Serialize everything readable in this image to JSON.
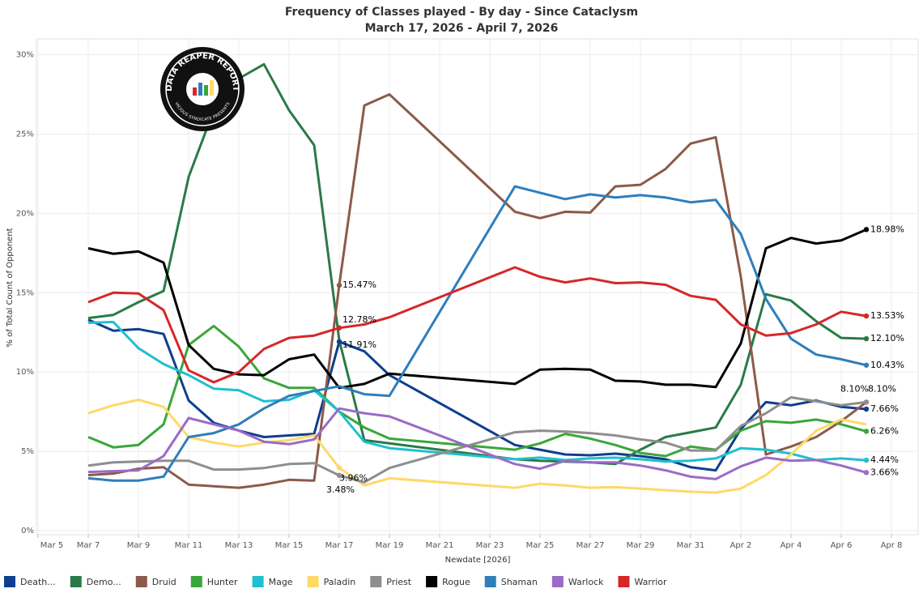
{
  "chart_data": {
    "type": "line",
    "title": "Frequency of Classes played - By day - Since Cataclysm",
    "subtitle": "March 17, 2026 - April 7, 2026",
    "x_label": "Newdate [2026]",
    "y_label": "% of Total Count of Opponent",
    "x": [
      "2026-03-07",
      "2026-03-08",
      "2026-03-09",
      "2026-03-10",
      "2026-03-11",
      "2026-03-12",
      "2026-03-13",
      "2026-03-14",
      "2026-03-15",
      "2026-03-16",
      "2026-03-17",
      "2026-03-18",
      "2026-03-19",
      "2026-03-24",
      "2026-03-25",
      "2026-03-26",
      "2026-03-27",
      "2026-03-28",
      "2026-03-29",
      "2026-03-30",
      "2026-03-31",
      "2026-04-01",
      "2026-04-02",
      "2026-04-03",
      "2026-04-04",
      "2026-04-05",
      "2026-04-06",
      "2026-04-07"
    ],
    "xlim": [
      "2026-03-05",
      "2026-04-09"
    ],
    "xticks": [
      {
        "value": "2026-03-05",
        "label": "Mar 5"
      },
      {
        "value": "2026-03-07",
        "label": "Mar 7"
      },
      {
        "value": "2026-03-09",
        "label": "Mar 9"
      },
      {
        "value": "2026-03-11",
        "label": "Mar 11"
      },
      {
        "value": "2026-03-13",
        "label": "Mar 13"
      },
      {
        "value": "2026-03-15",
        "label": "Mar 15"
      },
      {
        "value": "2026-03-17",
        "label": "Mar 17"
      },
      {
        "value": "2026-03-19",
        "label": "Mar 19"
      },
      {
        "value": "2026-03-21",
        "label": "Mar 21"
      },
      {
        "value": "2026-03-23",
        "label": "Mar 23"
      },
      {
        "value": "2026-03-25",
        "label": "Mar 25"
      },
      {
        "value": "2026-03-27",
        "label": "Mar 27"
      },
      {
        "value": "2026-03-29",
        "label": "Mar 29"
      },
      {
        "value": "2026-03-31",
        "label": "Mar 31"
      },
      {
        "value": "2026-04-02",
        "label": "Apr 2"
      },
      {
        "value": "2026-04-04",
        "label": "Apr 4"
      },
      {
        "value": "2026-04-06",
        "label": "Apr 6"
      },
      {
        "value": "2026-04-08",
        "label": "Apr 8"
      }
    ],
    "ylim": [
      0,
      31
    ],
    "yticks": [
      {
        "value": 0,
        "label": "0%"
      },
      {
        "value": 5,
        "label": "5%"
      },
      {
        "value": 10,
        "label": "10%"
      },
      {
        "value": 15,
        "label": "15%"
      },
      {
        "value": 20,
        "label": "20%"
      },
      {
        "value": 25,
        "label": "25%"
      },
      {
        "value": 30,
        "label": "30%"
      }
    ],
    "grid": true,
    "legend": "bottom",
    "series": [
      {
        "name": "Death...",
        "color": "#0d3f8f",
        "values": [
          13.3,
          12.6,
          12.7,
          12.4,
          8.2,
          6.8,
          6.3,
          5.9,
          6.0,
          6.1,
          11.91,
          11.3,
          9.8,
          5.4,
          5.1,
          4.8,
          4.75,
          4.85,
          4.7,
          4.5,
          4.0,
          3.8,
          6.4,
          8.1,
          7.9,
          8.2,
          7.8,
          7.66
        ],
        "value_labels": [
          null,
          null,
          null,
          null,
          null,
          null,
          null,
          null,
          null,
          null,
          "11.91%",
          null,
          null,
          null,
          null,
          null,
          null,
          null,
          null,
          null,
          null,
          null,
          null,
          null,
          null,
          null,
          null,
          "7.66%"
        ]
      },
      {
        "name": "Demo...",
        "color": "#2a7a47",
        "values": [
          13.4,
          13.6,
          14.4,
          15.1,
          22.3,
          26.5,
          28.5,
          29.4,
          26.5,
          24.3,
          12.0,
          5.7,
          5.5,
          4.5,
          4.4,
          4.35,
          4.3,
          4.2,
          5.1,
          5.9,
          6.2,
          6.5,
          9.2,
          14.9,
          14.5,
          13.2,
          12.15,
          12.1
        ],
        "value_labels": [
          null,
          null,
          null,
          null,
          null,
          null,
          null,
          null,
          null,
          null,
          null,
          null,
          null,
          null,
          null,
          null,
          null,
          null,
          null,
          null,
          null,
          null,
          null,
          null,
          null,
          null,
          null,
          "12.10%"
        ]
      },
      {
        "name": "Druid",
        "color": "#8c5a4a",
        "values": [
          3.5,
          3.6,
          3.9,
          4.0,
          2.9,
          2.8,
          2.7,
          2.9,
          3.2,
          3.15,
          15.47,
          26.8,
          27.5,
          20.1,
          19.7,
          20.1,
          20.05,
          21.7,
          21.8,
          22.8,
          24.4,
          24.8,
          16.0,
          4.8,
          5.3,
          5.9,
          6.9,
          8.1
        ],
        "value_labels": [
          null,
          null,
          null,
          null,
          null,
          null,
          null,
          null,
          null,
          null,
          "15.47%",
          null,
          null,
          null,
          null,
          null,
          null,
          null,
          null,
          null,
          null,
          null,
          null,
          null,
          null,
          null,
          null,
          "8.10%"
        ]
      },
      {
        "name": "Hunter",
        "color": "#3aa63a",
        "values": [
          5.9,
          5.25,
          5.4,
          6.7,
          11.7,
          12.9,
          11.6,
          9.6,
          9.0,
          9.0,
          7.5,
          6.5,
          5.8,
          5.1,
          5.5,
          6.1,
          5.8,
          5.4,
          4.9,
          4.7,
          5.3,
          5.1,
          6.3,
          6.9,
          6.8,
          7.0,
          6.7,
          6.26
        ],
        "value_labels": [
          null,
          null,
          null,
          null,
          null,
          null,
          null,
          null,
          null,
          null,
          null,
          null,
          null,
          null,
          null,
          null,
          null,
          null,
          null,
          null,
          null,
          null,
          null,
          null,
          null,
          null,
          null,
          "6.26%"
        ]
      },
      {
        "name": "Mage",
        "color": "#20bfd0",
        "values": [
          13.1,
          13.15,
          11.5,
          10.5,
          9.8,
          8.95,
          8.85,
          8.15,
          8.25,
          8.85,
          7.5,
          5.6,
          5.2,
          4.5,
          4.6,
          4.45,
          4.55,
          4.6,
          4.5,
          4.35,
          4.4,
          4.55,
          5.2,
          5.1,
          4.85,
          4.45,
          4.55,
          4.44
        ],
        "value_labels": [
          null,
          null,
          null,
          null,
          null,
          null,
          null,
          null,
          null,
          null,
          null,
          null,
          null,
          null,
          null,
          null,
          null,
          null,
          null,
          null,
          null,
          null,
          null,
          null,
          null,
          null,
          null,
          "4.44%"
        ]
      },
      {
        "name": "Paladin",
        "color": "#ffd966",
        "values": [
          7.4,
          7.9,
          8.25,
          7.8,
          5.9,
          5.55,
          5.3,
          5.55,
          5.7,
          6.0,
          3.96,
          2.85,
          3.3,
          2.7,
          2.95,
          2.85,
          2.7,
          2.75,
          2.65,
          2.55,
          2.45,
          2.4,
          2.65,
          3.5,
          4.8,
          6.3,
          7.0,
          6.7
        ],
        "value_labels": [
          null,
          null,
          null,
          null,
          null,
          null,
          null,
          null,
          null,
          null,
          "3.96%",
          null,
          null,
          null,
          null,
          null,
          null,
          null,
          null,
          null,
          null,
          null,
          null,
          null,
          null,
          null,
          null,
          null
        ]
      },
      {
        "name": "Priest",
        "color": "#8e8e8e",
        "values": [
          4.1,
          4.3,
          4.35,
          4.4,
          4.4,
          3.85,
          3.85,
          3.95,
          4.2,
          4.25,
          3.48,
          3.05,
          3.95,
          6.2,
          6.3,
          6.25,
          6.15,
          6.0,
          5.75,
          5.55,
          5.05,
          5.05,
          6.6,
          7.4,
          8.4,
          8.15,
          7.9,
          8.1
        ],
        "value_labels": [
          null,
          null,
          null,
          null,
          null,
          null,
          null,
          null,
          null,
          null,
          "3.48%",
          null,
          null,
          null,
          null,
          null,
          null,
          null,
          null,
          null,
          null,
          null,
          null,
          null,
          null,
          null,
          null,
          "8.10%"
        ]
      },
      {
        "name": "Rogue",
        "color": "#000000",
        "values": [
          17.8,
          17.45,
          17.6,
          16.9,
          11.7,
          10.2,
          9.85,
          9.8,
          10.8,
          11.1,
          9.0,
          9.25,
          9.9,
          9.25,
          10.15,
          10.2,
          10.15,
          9.45,
          9.4,
          9.2,
          9.2,
          9.05,
          11.8,
          17.8,
          18.45,
          18.1,
          18.3,
          18.98
        ],
        "value_labels": [
          null,
          null,
          null,
          null,
          null,
          null,
          null,
          null,
          null,
          null,
          null,
          null,
          null,
          null,
          null,
          null,
          null,
          null,
          null,
          null,
          null,
          null,
          null,
          null,
          null,
          null,
          null,
          "18.98%"
        ]
      },
      {
        "name": "Shaman",
        "color": "#2f7ebb",
        "values": [
          3.3,
          3.15,
          3.15,
          3.4,
          5.9,
          6.15,
          6.7,
          7.7,
          8.5,
          8.8,
          9.1,
          8.6,
          8.5,
          21.7,
          21.3,
          20.9,
          21.2,
          21.0,
          21.15,
          21.0,
          20.7,
          20.85,
          18.7,
          14.6,
          12.1,
          11.1,
          10.8,
          10.43
        ],
        "value_labels": [
          null,
          null,
          null,
          null,
          null,
          null,
          null,
          null,
          null,
          null,
          null,
          null,
          null,
          null,
          null,
          null,
          null,
          null,
          null,
          null,
          null,
          null,
          null,
          null,
          null,
          null,
          null,
          "10.43%"
        ]
      },
      {
        "name": "Warlock",
        "color": "#9b6bc6",
        "values": [
          3.7,
          3.75,
          3.8,
          4.7,
          7.1,
          6.7,
          6.3,
          5.6,
          5.45,
          5.75,
          7.7,
          7.4,
          7.2,
          4.2,
          3.9,
          4.4,
          4.3,
          4.3,
          4.1,
          3.8,
          3.4,
          3.25,
          4.05,
          4.6,
          4.4,
          4.45,
          4.1,
          3.66
        ],
        "value_labels": [
          null,
          null,
          null,
          null,
          null,
          null,
          null,
          null,
          null,
          null,
          null,
          null,
          null,
          null,
          null,
          null,
          null,
          null,
          null,
          null,
          null,
          null,
          null,
          null,
          null,
          null,
          null,
          "3.66%"
        ]
      },
      {
        "name": "Warrior",
        "color": "#d62728",
        "values": [
          14.4,
          15.0,
          14.95,
          13.9,
          10.1,
          9.35,
          10.0,
          11.45,
          12.15,
          12.3,
          12.78,
          13.0,
          13.45,
          16.6,
          16.0,
          15.65,
          15.9,
          15.6,
          15.65,
          15.5,
          14.8,
          14.55,
          13.0,
          12.3,
          12.45,
          13.0,
          13.8,
          13.53
        ],
        "value_labels": [
          null,
          null,
          null,
          null,
          null,
          null,
          null,
          null,
          null,
          null,
          "12.78%",
          null,
          null,
          null,
          null,
          null,
          null,
          null,
          null,
          null,
          null,
          null,
          null,
          null,
          null,
          null,
          null,
          "13.53%"
        ]
      }
    ]
  },
  "logo": {
    "title": "DATA REAPER REPORT",
    "subtitle": "VICIOUS SYNDICATE PRESENTS"
  }
}
